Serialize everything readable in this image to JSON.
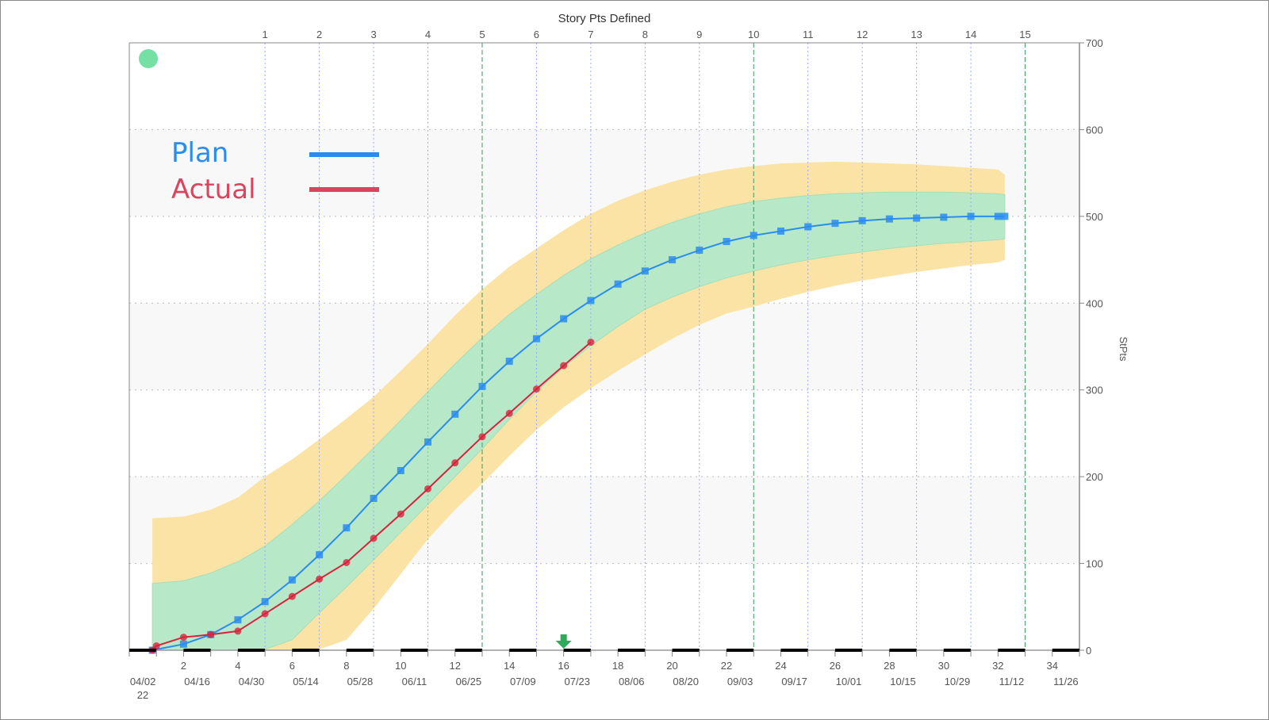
{
  "chart_data": {
    "type": "line",
    "title": "Story Pts Defined",
    "ylabel": "StPts",
    "xlabel": "",
    "xlim": [
      0,
      35
    ],
    "ylim": [
      0,
      700
    ],
    "yticks": [
      0,
      100,
      200,
      300,
      400,
      500,
      600,
      700
    ],
    "grid": "horizontal dotted, alternating shaded bands",
    "legend_position": "top-left",
    "x_week_ticks": [
      2,
      4,
      6,
      8,
      10,
      12,
      14,
      16,
      18,
      20,
      22,
      24,
      26,
      28,
      30,
      32,
      34
    ],
    "x_date_labels": [
      "04/02",
      "04/16",
      "04/30",
      "05/14",
      "05/28",
      "06/11",
      "06/25",
      "07/09",
      "07/23",
      "08/06",
      "08/20",
      "09/03",
      "09/17",
      "10/01",
      "10/15",
      "10/29",
      "11/12",
      "11/26"
    ],
    "x_date_year": "22",
    "sprints": {
      "labels": [
        1,
        2,
        3,
        4,
        5,
        6,
        7,
        8,
        9,
        10,
        11,
        12,
        13,
        14,
        15
      ],
      "weeks": [
        5,
        7,
        9,
        11,
        13,
        15,
        17,
        19,
        21,
        23,
        25,
        27,
        29,
        31,
        33
      ],
      "release_boundaries": [
        5,
        10,
        15
      ]
    },
    "today_week": 16,
    "status_color": "#74e0a4",
    "series": [
      {
        "name": "Plan",
        "color": "#2b8cf0",
        "marker": "square",
        "x": [
          0.85,
          2,
          3,
          4,
          5,
          6,
          7,
          8,
          9,
          10,
          11,
          12,
          13,
          14,
          15,
          16,
          17,
          18,
          19,
          20,
          21,
          22,
          23,
          24,
          25,
          26,
          27,
          28,
          29,
          30,
          31,
          32,
          32.25
        ],
        "y": [
          0,
          7,
          18,
          35,
          56,
          81,
          110,
          141,
          175,
          207,
          240,
          272,
          304,
          333,
          359,
          382,
          403,
          422,
          437,
          450,
          461,
          471,
          478,
          483,
          488,
          492,
          495,
          497,
          498,
          499,
          500,
          500,
          500
        ]
      },
      {
        "name": "Actual",
        "color": "#d9223c",
        "marker": "circle",
        "x": [
          0.85,
          1,
          2,
          3,
          4,
          5,
          6,
          7,
          8,
          9,
          10,
          11,
          12,
          13,
          14,
          15,
          16,
          17
        ],
        "y": [
          0,
          5,
          15,
          18,
          22,
          42,
          62,
          82,
          101,
          129,
          157,
          186,
          216,
          246,
          273,
          301,
          328,
          355
        ]
      }
    ],
    "bands": {
      "x": [
        0.85,
        2,
        3,
        4,
        5,
        6,
        7,
        8,
        9,
        10,
        11,
        12,
        13,
        14,
        15,
        16,
        17,
        18,
        19,
        20,
        21,
        22,
        23,
        24,
        25,
        26,
        27,
        28,
        29,
        30,
        31,
        32,
        32.25
      ],
      "outer": {
        "color": "#fbe3a6",
        "upper": [
          152,
          154,
          162,
          176,
          200,
          220,
          243,
          267,
          292,
          322,
          353,
          386,
          416,
          442,
          463,
          484,
          503,
          518,
          530,
          540,
          548,
          554,
          558,
          561,
          562,
          563,
          562,
          561,
          560,
          558,
          556,
          554,
          548
        ],
        "lower": [
          0,
          0,
          0,
          0,
          0,
          0,
          1,
          12,
          48,
          88,
          128,
          162,
          192,
          224,
          254,
          280,
          302,
          322,
          341,
          359,
          375,
          388,
          396,
          405,
          413,
          420,
          426,
          431,
          436,
          440,
          444,
          447,
          450
        ]
      },
      "inner": {
        "color": "#b7e9c8",
        "upper": [
          77,
          80,
          89,
          102,
          120,
          145,
          172,
          202,
          233,
          265,
          298,
          330,
          360,
          387,
          410,
          432,
          451,
          467,
          481,
          493,
          503,
          511,
          517,
          521,
          524,
          526,
          527,
          528,
          528,
          528,
          527,
          526,
          525
        ],
        "lower": [
          0,
          0,
          0,
          0,
          1,
          12,
          43,
          73,
          104,
          136,
          168,
          200,
          232,
          266,
          298,
          326,
          351,
          373,
          393,
          407,
          419,
          429,
          437,
          444,
          450,
          455,
          459,
          463,
          466,
          469,
          471,
          473,
          474
        ]
      }
    }
  }
}
